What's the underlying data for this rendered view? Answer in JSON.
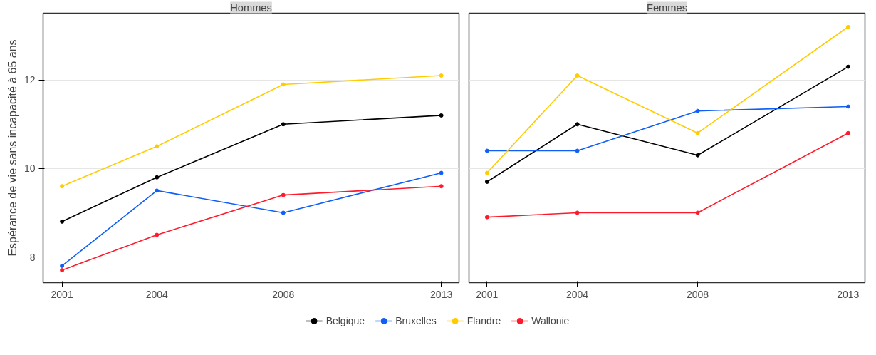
{
  "chart_data": [
    {
      "type": "line",
      "title": "Hommes",
      "ylabel": "Espérance de vie sans incapacité à 65 ans",
      "x": [
        2001,
        2004,
        2008,
        2013
      ],
      "xlim": [
        2000.4,
        2013.56
      ],
      "ylim": [
        7.42,
        13.51
      ],
      "xticks": [
        2001,
        2004,
        2008,
        2013
      ],
      "yticks": [
        8,
        10,
        12
      ],
      "grid": "y",
      "legend": "bottom",
      "marker": "circle",
      "series": [
        {
          "name": "Belgique",
          "color": "#000000",
          "values": [
            8.8,
            9.8,
            11.0,
            11.2
          ]
        },
        {
          "name": "Bruxelles",
          "color": "#0f5ef7",
          "values": [
            7.8,
            9.5,
            9.0,
            9.9
          ]
        },
        {
          "name": "Flandre",
          "color": "#ffcc00",
          "values": [
            9.6,
            10.5,
            11.9,
            12.1
          ]
        },
        {
          "name": "Wallonie",
          "color": "#ff1a2b",
          "values": [
            7.7,
            8.5,
            9.4,
            9.6
          ]
        }
      ]
    },
    {
      "type": "line",
      "title": "Femmes",
      "x": [
        2001,
        2004,
        2008,
        2013
      ],
      "xlim": [
        2000.4,
        2013.56
      ],
      "ylim": [
        7.42,
        13.51
      ],
      "xticks": [
        2001,
        2004,
        2008,
        2013
      ],
      "yticks": [
        8,
        10,
        12
      ],
      "grid": "y",
      "tick_labels": "x",
      "marker": "circle",
      "series": [
        {
          "color": "#000000",
          "values": [
            9.7,
            11.0,
            10.3,
            12.3
          ]
        },
        {
          "color": "#0f5ef7",
          "values": [
            10.4,
            10.4,
            11.3,
            11.4
          ]
        },
        {
          "color": "#ffcc00",
          "values": [
            9.9,
            12.1,
            10.8,
            13.2
          ]
        },
        {
          "color": "#ff1a2b",
          "values": [
            8.9,
            9.0,
            9.0,
            10.8
          ]
        }
      ]
    }
  ]
}
